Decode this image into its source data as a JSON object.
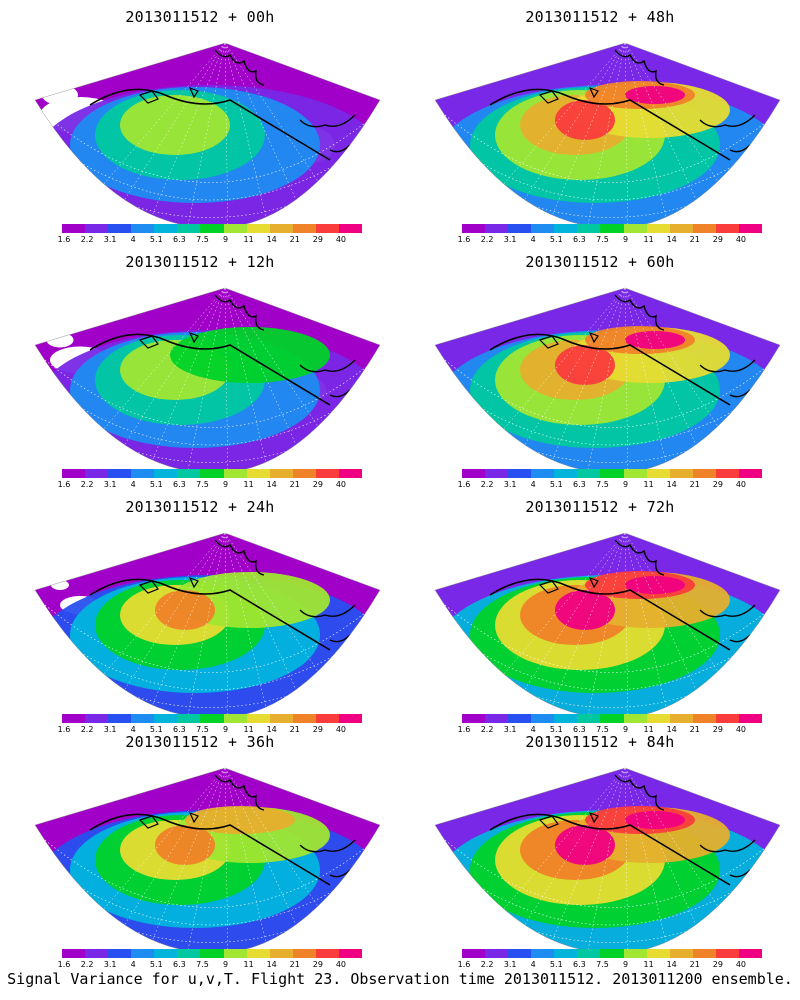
{
  "panels": [
    {
      "title": "2013011512 + 00h"
    },
    {
      "title": "2013011512 + 48h"
    },
    {
      "title": "2013011512 + 12h"
    },
    {
      "title": "2013011512 + 60h"
    },
    {
      "title": "2013011512 + 24h"
    },
    {
      "title": "2013011512 + 72h"
    },
    {
      "title": "2013011512 + 36h"
    },
    {
      "title": "2013011512 + 84h"
    }
  ],
  "legend": {
    "levels": [
      "1.6",
      "2.2",
      "3.1",
      "4",
      "5.1",
      "6.3",
      "7.5",
      "9",
      "11",
      "14",
      "21",
      "29",
      "40"
    ],
    "colors": [
      "#a000c8",
      "#7828e6",
      "#2850f0",
      "#1e8cf0",
      "#00b4dc",
      "#00c8a0",
      "#00d228",
      "#a0e632",
      "#e6dc32",
      "#e6af2d",
      "#f08228",
      "#fa3c3c",
      "#f00082"
    ]
  },
  "footer": {
    "caption": "Signal Variance for u,v,T. Flight 23. Observation time 2013011512. 2013011200 ensemble."
  }
}
